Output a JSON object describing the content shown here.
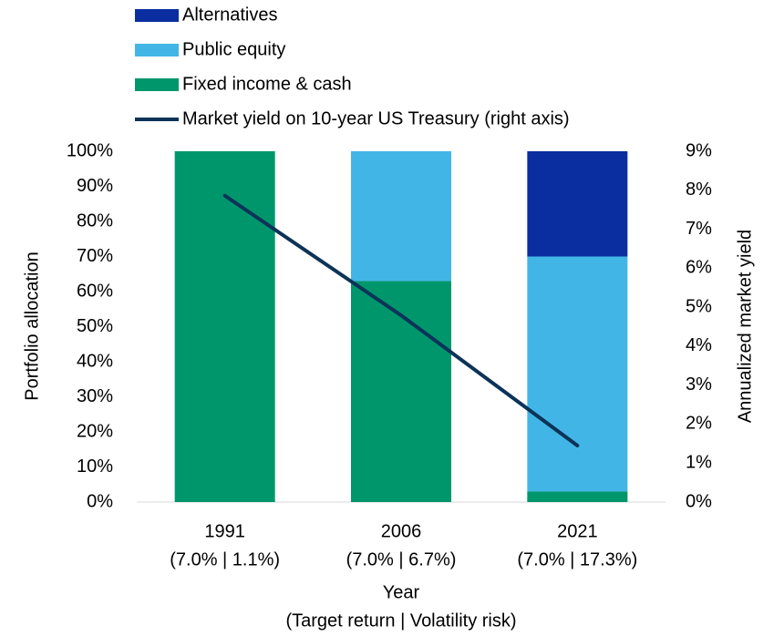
{
  "chart_data": {
    "type": "bar",
    "stacked": true,
    "categories": [
      [
        "1991",
        "(7.0% | 1.1%)"
      ],
      [
        "2006",
        "(7.0% | 6.7%)"
      ],
      [
        "2021",
        "(7.0% | 17.3%)"
      ]
    ],
    "series": [
      {
        "name": "Alternatives",
        "color": "#0a2ea0",
        "values": [
          0,
          0,
          30
        ]
      },
      {
        "name": "Public equity",
        "color": "#41b6e6",
        "values": [
          0,
          37,
          67
        ]
      },
      {
        "name": "Fixed income & cash",
        "color": "#00966c",
        "values": [
          100,
          63,
          3
        ]
      },
      {
        "name": "Market yield on 10-year US Treasury (right axis)",
        "color": "#0c3358",
        "type": "line",
        "axis": "y2",
        "values": [
          7.86,
          4.79,
          1.45
        ]
      }
    ],
    "ylabel": "Portfolio allocation",
    "y2label": "Annualized market yield",
    "xlabel": [
      "Year",
      "(Target return | Volatility risk)"
    ],
    "ylim": [
      0,
      100
    ],
    "yticks": [
      {
        "value": 0,
        "label": "0%"
      },
      {
        "value": 10,
        "label": "10%"
      },
      {
        "value": 20,
        "label": "20%"
      },
      {
        "value": 30,
        "label": "30%"
      },
      {
        "value": 40,
        "label": "40%"
      },
      {
        "value": 50,
        "label": "50%"
      },
      {
        "value": 60,
        "label": "60%"
      },
      {
        "value": 70,
        "label": "70%"
      },
      {
        "value": 80,
        "label": "80%"
      },
      {
        "value": 90,
        "label": "90%"
      },
      {
        "value": 100,
        "label": "100%"
      }
    ],
    "y2lim": [
      0,
      9
    ],
    "y2ticks": [
      {
        "value": 0,
        "label": "0%"
      },
      {
        "value": 1,
        "label": "1%"
      },
      {
        "value": 2,
        "label": "2%"
      },
      {
        "value": 3,
        "label": "3%"
      },
      {
        "value": 4,
        "label": "4%"
      },
      {
        "value": 5,
        "label": "5%"
      },
      {
        "value": 6,
        "label": "6%"
      },
      {
        "value": 7,
        "label": "7%"
      },
      {
        "value": 8,
        "label": "8%"
      },
      {
        "value": 9,
        "label": "9%"
      }
    ],
    "legend": "top-left"
  }
}
